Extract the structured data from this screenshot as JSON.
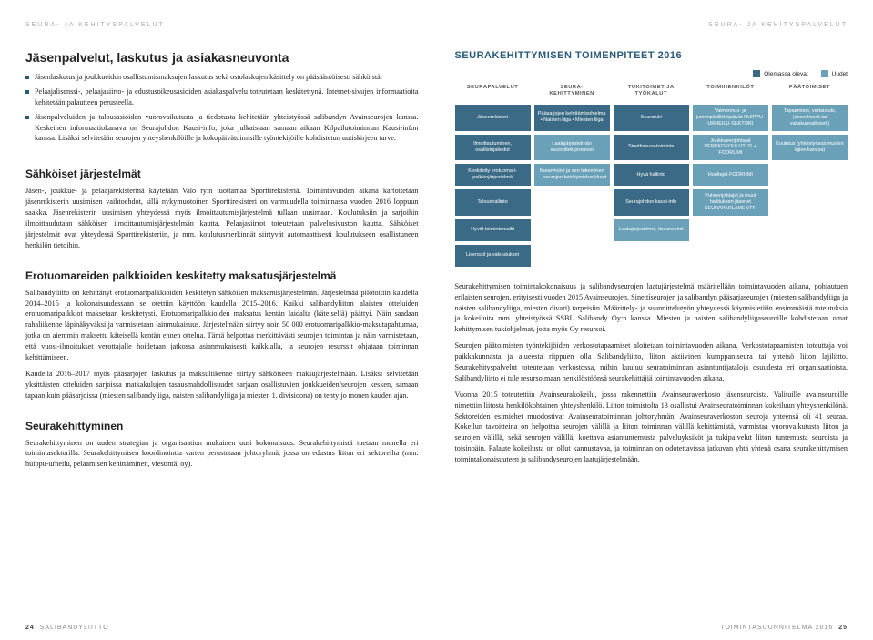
{
  "header_label": "SEURA- JA KEHITYSPALVELUT",
  "left": {
    "h1": "Jäsenpalvelut, laskutus ja asiakasneuvonta",
    "bullets": [
      "Jäsenlaskutus ja joukkueiden osallistumismaksujen laskutus sekä ostolaskujen käsittely on pääsääntöisesti sähköistä.",
      "Pelaajalisenssi-, pelaajasiirto- ja edustusoikeusasioiden asiakaspalvelu toteutetaan keskitettynä. Internet-sivujen informaatioita kehitetään palautteen perusteella.",
      "Jäsenpalveluiden ja talousasioiden vuorovaikutusta ja tiedotusta kehitetään yhteistyössä salibandyn Avainseurojen kanssa. Keskeinen informaatiokanava on Seurajohdon Kausi-info, joka julkaistaan samaan aikaan Kilpailutoiminnan Kausi-infon kanssa. Lisäksi selvitetään seurojen yhteyshenkilöille ja kokopäivätoimisille työntekijöille kohdistetun uutiskirjeen tarve."
    ],
    "h2_a": "Sähköiset järjestelmät",
    "p_a": "Jäsen-, joukkue- ja pelaajarekisterinä käytetään Valo ry:n tuottamaa Sporttirekisteriä. Toimintavuoden aikana kartoitetaan jäsenrekisterin uusimisen vaihtoehdot, sillä nykymuotoinen Sporttirekisteri on varmuudella toiminnassa vuoden 2016 loppuun saakka. Jäsenrekisterin uusimisen yhteydessä myös ilmoittautumisjärjestelmä tullaan uusimaan. Koulutuksiin ja sarjoihin ilmoittaudutaan sähköisen ilmoittautumisjärjestelmän kautta. Pelaajasiirrot toteutetaan palvelusivuston kautta. Sähköiset järjestelmät ovat yhteydessä Sporttirekisteriin, ja mm. koulutusmerkinnät siirtyvät automaattisesti koulutukseen osallistuneen henkilön tietoihin.",
    "h2_b": "Erotuomareiden palkkioiden keskitetty maksatusjärjestelmä",
    "p_b1": "Salibandyliitto on kehittänyt erotuomaripalkkioiden keskitetyn sähköisen maksamisjärjestelmän. Järjestelmää pilotoitiin kaudella 2014–2015 ja kokonaisuudessaan se otettiin käyttöön kaudella 2015–2016. Kaikki salibandyliiton alaisten otteluiden erotuomaripalkkiot maksetaan keskitetysti. Erotuomaripalkkioiden maksatus kentän laidalta (käteisellä) päättyi. Näin saadaan rahaliikenne läpinäkyväksi ja varmistetaan lainmukaisuus. Järjestelmään siirtyy noin 50 000 erotuomaripalkkio-maksutapahtumaa, jotka on aiemmin maksettu käteisellä kentän ennen ottelua. Tämä helpottaa merkittävästi seurojen toimintaa ja näin varmistetaan, että vuosi-ilmoitukset verottajalle hoidetaan jatkossa asianmukaisesti kaikkialla, ja seurojen resurssit ohjataan toiminnan kehittämiseen.",
    "p_b2": "Kaudella 2016–2017 myös pääsarjojen laskutus ja maksuliikenne siirtyy sähköiseen maksujärjestelmään. Lisäksi selvitetään yksittäisten otteluiden sarjoissa matkakulujen tasausmahdollisuudet sarjaan osallistuvien joukkueiden/seurojen kesken, samaan tapaan kuin pääsarjoissa (miesten salibandyliiga, naisten salibandyliiga ja miesten 1. divisioona) on tehty jo monen kauden ajan.",
    "h2_c": "Seurakehittyminen",
    "p_c": "Seurakehittyminen on uuden strategian ja organisaation mukainen uusi kokonaisuus. Seurakehittymistä tuetaan monella eri toimintasektorilla. Seurakehittymisen koordinointia varten perustetaan johtoryhmä, jossa on edustus liiton eri sektoreilta (mm. huippu-urheilu, pelaamisen kehittäminen, viestintä, oy)."
  },
  "right": {
    "diagram_title": "SEURAKEHITTYMISEN TOIMENPITEET 2016",
    "legend": {
      "existing": "Olemassa olevat",
      "new": "Uudet"
    },
    "colors": {
      "existing": "#3a6a85",
      "new": "#6aa0b8",
      "header_text": "#555"
    },
    "columns": [
      "SEURAPALVELUT",
      "SEURA-\nKEHITTYMINEN",
      "TUKITOIMET JA\nTYÖKALUT",
      "TOIMIHENKILÖT",
      "PÄÄTOIMISET"
    ],
    "rows": [
      [
        "Jäsenrekisteri",
        "Pääsarjojen kehittämisohjelma • Naisten liiga • Miesten liiga",
        "Seuratuki",
        "Valmennus- ja junioripäällikköpäivät HUIPPU-URHEILU-SEKTORI",
        "Tapaamiset, vertaistuki, (alueellisesti tai valtakunnallisesti)"
      ],
      [
        "Ilmoittautuminen, osallistujatiedot",
        "Laatujärjestelmän suunnitteluprosessi",
        "Sinettiseura-toiminta",
        "Joukkueenjohtajat VERKKOKOULUTUS + FOORUMI",
        "Koulutus (yhteistyössä muiden lajien kanssa)"
      ],
      [
        "Keskitetty erotuomari-palkkiojärjestelmä",
        "Itsearviointi ja sen tukeminen → seurojen kehittymishankkeet",
        "Hyvä hallinto",
        "Huoltajat FOORUMI",
        ""
      ],
      [
        "Taloushallinto",
        "",
        "Seurajohdon kausi-info",
        "Puheenjohtajat ja muut hallituksen jäsenet SEURAPARLAMENTTI",
        ""
      ],
      [
        "Hyvät toimintamallit",
        "",
        "Laatujärjestelmä, itsearviointi",
        "",
        ""
      ],
      [
        "Lisenssit ja vakuutukset",
        "",
        "",
        "",
        ""
      ]
    ],
    "new_flags": [
      [
        false,
        false,
        false,
        true,
        true
      ],
      [
        false,
        true,
        false,
        true,
        true
      ],
      [
        false,
        true,
        false,
        true,
        null
      ],
      [
        false,
        null,
        false,
        true,
        null
      ],
      [
        false,
        null,
        true,
        null,
        null
      ],
      [
        false,
        null,
        null,
        null,
        null
      ]
    ],
    "p1": "Seurakehittymisen toimintakokonaisuus ja salibandyseurojen laatujärjestelmä määritellään toimintavuoden aikana, pohjautuen erilaisten seurojen, erityisesti vuoden 2015 Avainseurojen, Sinettíseurojen ja salibandyn pääsarjaseurojen (miesten salibandyliiga ja naisten salibandyliiga, miesten divari) tarpeisiin. Määrittely- ja suunnittelutyön yhteydessä käynnistetään ensimmäisiä toteutuksia ja kokeiluita mm. yhteistyössä SSBL Salibandy Oy:n kanssa. Miesten ja naisten salibandyliigaseuroille kohdistetaan omat kehittymisen tukiohjelmat, joita myös Oy resursoi.",
    "p2": "Seurojen päätoimisten työntekijöiden verkostotapaamiset aloitetaan toimintavuoden aikana. Verkostotapaamisten toteuttaja voi paikkakunnasta ja alueesta riippuen olla Salibandyliitto, liiton aktiivinen kumppaniseura tai yhteisö liiton lajiliitto. Seurakehityspalvelut toteutetaan verkostossa, mihin kuuluu seuratoiminnan asiantuntijataloja osuudesta eri organisaatioista. Salibandyliitto ei tule resursoimaan henkilöstöönsä seurakehittäjiä toimintavuoden aikana.",
    "p3": "Vuonna 2015 toteutettiin Avainseurakokeilu, jossa rakennettiin Avainseuraverkosto jäsenseuroista. Valituille avainseuroille nimettiin liitosta henkilökohtainen yhteyshenkilö. Liiton toimistolta 13 osallistui Avainseuratoiminnan kokeiluun yhteyshenkilönä. Sektoreiden esimiehet muodostivat Avainseuratoiminnan johtoryhmän. Avainseuraverkoston seuroja yhteensä oli 41 seuraa. Kokeilun tavoitteina on helpottaa seurojen välillä ja liiton toiminnan välillä kehittämistä, varmistaa vuorovaikutusta liiton ja seurojen välillä, sekä seurojen välillä, koettava asiantuntemusta palveluyksiköt ja tukipalvelut liiton tuntemusta seuroista ja toisinpäin. Palaute kokeilusta on ollut kannustavaa, ja toiminnan on odotettavissa jatkuvan yhtä yhtenä osana seurakehittymisen toimintakonaisuuteen ja salibandyseurojen laatujärjestelmään."
  },
  "footer": {
    "left_num": "24",
    "left_text": "SALIBANDYLIITTO",
    "right_text": "TOIMINTASUUNNITELMA 2016",
    "right_num": "25"
  }
}
